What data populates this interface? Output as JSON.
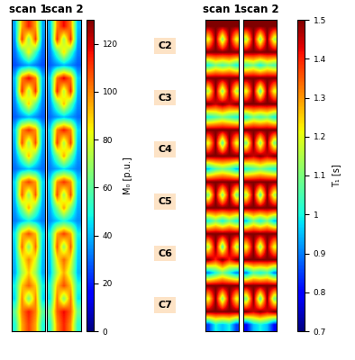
{
  "chart_data": [
    {
      "type": "heatmap",
      "tick_labels": false,
      "colorbar": {
        "label": "M₀ [p.u.]",
        "range": [
          0,
          130
        ],
        "ticks": [
          0,
          20,
          40,
          60,
          80,
          100,
          120
        ]
      },
      "panels": [
        {
          "title": "scan 1",
          "cells": [
            [
              38,
              95,
              115,
              95,
              38
            ],
            [
              34,
              110,
              68,
              110,
              34
            ],
            [
              30,
              55,
              85,
              55,
              30
            ],
            [
              26,
              32,
              38,
              32,
              26
            ],
            [
              40,
              100,
              118,
              100,
              40
            ],
            [
              36,
              112,
              72,
              112,
              36
            ],
            [
              32,
              60,
              90,
              60,
              32
            ],
            [
              28,
              34,
              40,
              34,
              28
            ],
            [
              42,
              98,
              112,
              98,
              42
            ],
            [
              38,
              108,
              70,
              108,
              38
            ],
            [
              34,
              62,
              92,
              62,
              34
            ],
            [
              30,
              36,
              42,
              36,
              30
            ],
            [
              44,
              96,
              110,
              96,
              44
            ],
            [
              40,
              106,
              68,
              106,
              40
            ],
            [
              36,
              64,
              94,
              64,
              36
            ],
            [
              32,
              40,
              48,
              40,
              32
            ],
            [
              46,
              92,
              108,
              92,
              46
            ],
            [
              42,
              104,
              66,
              104,
              42
            ],
            [
              40,
              80,
              100,
              80,
              40
            ],
            [
              38,
              70,
              90,
              70,
              38
            ],
            [
              48,
              90,
              105,
              90,
              48
            ],
            [
              44,
              100,
              64,
              100,
              44
            ],
            [
              60,
              100,
              115,
              100,
              60
            ],
            [
              50,
              95,
              110,
              95,
              50
            ]
          ]
        },
        {
          "title": "scan 2",
          "cells": [
            [
              40,
              100,
              118,
              100,
              40
            ],
            [
              36,
              112,
              70,
              112,
              36
            ],
            [
              32,
              58,
              88,
              58,
              32
            ],
            [
              28,
              34,
              40,
              34,
              28
            ],
            [
              42,
              102,
              120,
              102,
              42
            ],
            [
              38,
              114,
              74,
              114,
              38
            ],
            [
              34,
              62,
              92,
              62,
              34
            ],
            [
              30,
              36,
              42,
              36,
              30
            ],
            [
              44,
              100,
              115,
              100,
              44
            ],
            [
              40,
              110,
              72,
              110,
              40
            ],
            [
              36,
              64,
              95,
              64,
              36
            ],
            [
              32,
              38,
              45,
              38,
              32
            ],
            [
              46,
              98,
              112,
              98,
              46
            ],
            [
              42,
              108,
              70,
              108,
              42
            ],
            [
              38,
              66,
              96,
              66,
              38
            ],
            [
              34,
              42,
              50,
              42,
              34
            ],
            [
              48,
              95,
              110,
              95,
              48
            ],
            [
              44,
              106,
              68,
              106,
              44
            ],
            [
              42,
              85,
              104,
              85,
              42
            ],
            [
              40,
              74,
              95,
              74,
              40
            ],
            [
              50,
              92,
              108,
              92,
              50
            ],
            [
              46,
              102,
              66,
              102,
              46
            ],
            [
              62,
              105,
              118,
              105,
              62
            ],
            [
              52,
              98,
              114,
              98,
              52
            ]
          ]
        }
      ]
    },
    {
      "type": "heatmap",
      "tick_labels": false,
      "colorbar": {
        "label": "T₁ [s]",
        "range": [
          0.7,
          1.5
        ],
        "ticks": [
          0.7,
          0.8,
          0.9,
          1,
          1.1,
          1.2,
          1.3,
          1.4,
          1.5
        ]
      },
      "panels": [
        {
          "title": "scan 1",
          "cells": [
            [
              1.5,
              1.5,
              1.5,
              1.5,
              1.5
            ],
            [
              1.2,
              1.5,
              1.1,
              1.5,
              1.2
            ],
            [
              1.5,
              1.5,
              1.5,
              1.5,
              1.5
            ],
            [
              1.0,
              1.1,
              1.05,
              1.1,
              1.0
            ],
            [
              1.5,
              1.5,
              1.5,
              1.5,
              1.5
            ],
            [
              1.15,
              1.5,
              1.1,
              1.5,
              1.15
            ],
            [
              1.5,
              1.45,
              1.5,
              1.45,
              1.5
            ],
            [
              1.0,
              1.05,
              1.1,
              1.05,
              1.0
            ],
            [
              1.5,
              1.5,
              1.5,
              1.5,
              1.5
            ],
            [
              1.2,
              1.5,
              1.05,
              1.5,
              1.2
            ],
            [
              1.5,
              1.5,
              1.5,
              1.5,
              1.5
            ],
            [
              0.95,
              1.05,
              1.1,
              1.05,
              0.95
            ],
            [
              1.5,
              1.5,
              1.5,
              1.5,
              1.5
            ],
            [
              1.1,
              1.5,
              1.1,
              1.5,
              1.1
            ],
            [
              1.5,
              1.5,
              1.5,
              1.5,
              1.5
            ],
            [
              1.0,
              1.1,
              1.0,
              1.1,
              1.0
            ],
            [
              1.5,
              1.5,
              1.5,
              1.5,
              1.5
            ],
            [
              1.15,
              1.5,
              1.05,
              1.5,
              1.15
            ],
            [
              1.5,
              1.4,
              1.5,
              1.4,
              1.5
            ],
            [
              0.9,
              1.0,
              1.1,
              1.0,
              0.9
            ],
            [
              1.5,
              1.5,
              1.5,
              1.5,
              1.5
            ],
            [
              1.2,
              1.5,
              1.1,
              1.5,
              1.2
            ],
            [
              1.5,
              1.5,
              1.5,
              1.5,
              1.5
            ],
            [
              0.85,
              1.0,
              0.95,
              1.0,
              0.85
            ]
          ]
        },
        {
          "title": "scan 2",
          "cells": [
            [
              1.5,
              1.5,
              1.5,
              1.5,
              1.5
            ],
            [
              1.15,
              1.5,
              1.1,
              1.5,
              1.15
            ],
            [
              1.5,
              1.5,
              1.5,
              1.5,
              1.5
            ],
            [
              1.05,
              1.1,
              1.0,
              1.1,
              1.05
            ],
            [
              1.5,
              1.5,
              1.5,
              1.5,
              1.5
            ],
            [
              1.2,
              1.5,
              1.05,
              1.5,
              1.2
            ],
            [
              1.5,
              1.5,
              1.5,
              1.5,
              1.5
            ],
            [
              1.0,
              1.1,
              1.05,
              1.1,
              1.0
            ],
            [
              1.5,
              1.5,
              1.5,
              1.5,
              1.5
            ],
            [
              1.1,
              1.5,
              1.1,
              1.5,
              1.1
            ],
            [
              1.5,
              1.45,
              1.5,
              1.45,
              1.5
            ],
            [
              1.0,
              1.05,
              1.1,
              1.05,
              1.0
            ],
            [
              1.5,
              1.5,
              1.5,
              1.5,
              1.5
            ],
            [
              1.15,
              1.5,
              1.05,
              1.5,
              1.15
            ],
            [
              1.5,
              1.5,
              1.5,
              1.5,
              1.5
            ],
            [
              0.95,
              1.1,
              1.0,
              1.1,
              0.95
            ],
            [
              1.5,
              1.5,
              1.5,
              1.5,
              1.5
            ],
            [
              1.2,
              1.5,
              1.1,
              1.5,
              1.2
            ],
            [
              1.5,
              1.5,
              1.5,
              1.5,
              1.5
            ],
            [
              0.9,
              1.05,
              1.0,
              1.05,
              0.9
            ],
            [
              1.5,
              1.5,
              1.5,
              1.5,
              1.5
            ],
            [
              1.1,
              1.5,
              1.05,
              1.5,
              1.1
            ],
            [
              1.5,
              1.45,
              1.5,
              1.45,
              1.5
            ],
            [
              0.8,
              0.95,
              1.0,
              0.95,
              0.8
            ]
          ]
        }
      ]
    }
  ],
  "slice_labels": [
    "C2",
    "C3",
    "C4",
    "C5",
    "C6",
    "C7"
  ]
}
